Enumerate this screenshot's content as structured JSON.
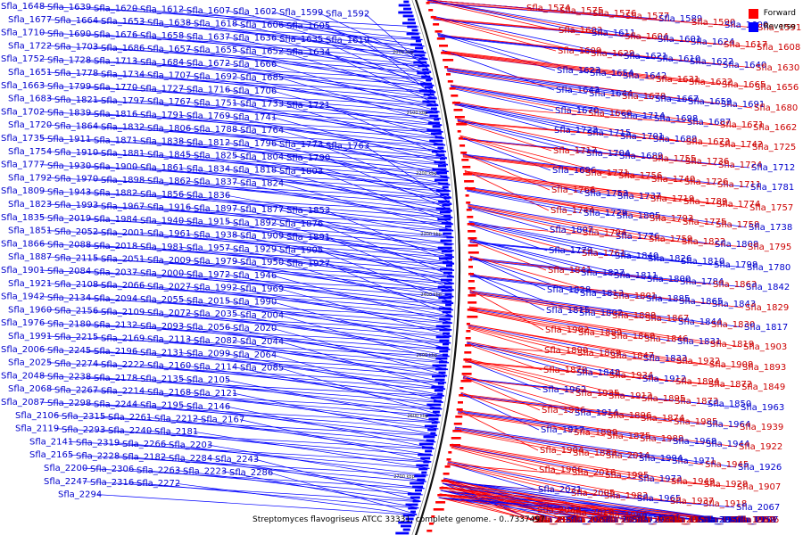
{
  "caption": "Streptomyces flavogriseus ATCC 33331, complete genome. - 0..7337497",
  "legend": {
    "forward": "Forward",
    "reverse": "Reverse"
  },
  "colors": {
    "forward": "#ff0000",
    "reverse": "#0000ff",
    "forward_line": "#ff0000",
    "reverse_line": "#0000ff",
    "text_forward": "#cc0000",
    "text_reverse": "#0000cc"
  },
  "axis_ticks": [
    "2000 kbp",
    "2100 kbp",
    "2200 kbp",
    "2300 kbp",
    "2400 kbp",
    "2500 kbp",
    "2600 kbp",
    "2700 kbp"
  ],
  "reverse_genes": [
    "Sfla_1648",
    "Sfla_1639",
    "Sfla_1620",
    "Sfla_1612",
    "Sfla_1607",
    "Sfla_1602",
    "Sfla_1599",
    "Sfla_1592",
    "Sfla_1677",
    "Sfla_1664",
    "Sfla_1653",
    "Sfla_1638",
    "Sfla_1618",
    "Sfla_1606",
    "Sfla_1605",
    "Sfla_1710",
    "Sfla_1690",
    "Sfla_1676",
    "Sfla_1658",
    "Sfla_1637",
    "Sfla_1636",
    "Sfla_1635",
    "Sfla_1619",
    "Sfla_1722",
    "Sfla_1703",
    "Sfla_1686",
    "Sfla_1657",
    "Sfla_1655",
    "Sfla_1652",
    "Sfla_1634",
    "Sfla_1752",
    "Sfla_1728",
    "Sfla_1713",
    "Sfla_1684",
    "Sfla_1672",
    "Sfla_1666",
    "Sfla_1651",
    "Sfla_1778",
    "Sfla_1734",
    "Sfla_1707",
    "Sfla_1692",
    "Sfla_1685",
    "Sfla_1663",
    "Sfla_1799",
    "Sfla_1770",
    "Sfla_1727",
    "Sfla_1716",
    "Sfla_1706",
    "Sfla_1683",
    "Sfla_1821",
    "Sfla_1797",
    "Sfla_1767",
    "Sfla_1751",
    "Sfla_1733",
    "Sfla_1721",
    "Sfla_1702",
    "Sfla_1839",
    "Sfla_1816",
    "Sfla_1791",
    "Sfla_1769",
    "Sfla_1741",
    "Sfla_1720",
    "Sfla_1864",
    "Sfla_1832",
    "Sfla_1806",
    "Sfla_1788",
    "Sfla_1764",
    "Sfla_1735",
    "Sfla_1911",
    "Sfla_1871",
    "Sfla_1838",
    "Sfla_1812",
    "Sfla_1796",
    "Sfla_1773",
    "Sfla_1763",
    "Sfla_1754",
    "Sfla_1910",
    "Sfla_1881",
    "Sfla_1845",
    "Sfla_1825",
    "Sfla_1804",
    "Sfla_1790",
    "Sfla_1777",
    "Sfla_1930",
    "Sfla_1900",
    "Sfla_1861",
    "Sfla_1834",
    "Sfla_1818",
    "Sfla_1803",
    "Sfla_1792",
    "Sfla_1970",
    "Sfla_1898",
    "Sfla_1862",
    "Sfla_1837",
    "Sfla_1824",
    "Sfla_1809",
    "Sfla_1943",
    "Sfla_1882",
    "Sfla_1856",
    "Sfla_1836",
    "Sfla_1823",
    "Sfla_1993",
    "Sfla_1967",
    "Sfla_1916",
    "Sfla_1897",
    "Sfla_1877",
    "Sfla_1853",
    "Sfla_1835",
    "Sfla_2019",
    "Sfla_1984",
    "Sfla_1940",
    "Sfla_1915",
    "Sfla_1892",
    "Sfla_1876",
    "Sfla_1851",
    "Sfla_2052",
    "Sfla_2001",
    "Sfla_1961",
    "Sfla_1938",
    "Sfla_1909",
    "Sfla_1891",
    "Sfla_1866",
    "Sfla_2088",
    "Sfla_2018",
    "Sfla_1981",
    "Sfla_1957",
    "Sfla_1929",
    "Sfla_1905",
    "Sfla_1887",
    "Sfla_2115",
    "Sfla_2051",
    "Sfla_2009",
    "Sfla_1979",
    "Sfla_1950",
    "Sfla_1927",
    "Sfla_1901",
    "Sfla_2084",
    "Sfla_2037",
    "Sfla_2000",
    "Sfla_1972",
    "Sfla_1946",
    "Sfla_1921",
    "Sfla_2108",
    "Sfla_2066",
    "Sfla_2027",
    "Sfla_1992",
    "Sfla_1969",
    "Sfla_1942",
    "Sfla_2134",
    "Sfla_2094",
    "Sfla_2055",
    "Sfla_2015",
    "Sfla_1990",
    "Sfla_1960",
    "Sfla_2156",
    "Sfla_2109",
    "Sfla_2072",
    "Sfla_2035",
    "Sfla_2004",
    "Sfla_1976",
    "Sfla_2180",
    "Sfla_2132",
    "Sfla_2093",
    "Sfla_2056",
    "Sfla_2020",
    "Sfla_1991",
    "Sfla_2215",
    "Sfla_2169",
    "Sfla_2113",
    "Sfla_2082",
    "Sfla_2044",
    "Sfla_2006",
    "Sfla_2245",
    "Sfla_2196",
    "Sfla_2131",
    "Sfla_2099",
    "Sfla_2064",
    "Sfla_2025",
    "Sfla_2274",
    "Sfla_2222",
    "Sfla_2160",
    "Sfla_2114",
    "Sfla_2085",
    "Sfla_2048",
    "Sfla_2238",
    "Sfla_2178",
    "Sfla_2135",
    "Sfla_2105",
    "Sfla_2068",
    "Sfla_2267",
    "Sfla_2214",
    "Sfla_2168",
    "Sfla_2121",
    "Sfla_2087",
    "Sfla_2298",
    "Sfla_2244",
    "Sfla_2195",
    "Sfla_2146",
    "Sfla_2106",
    "Sfla_2315",
    "Sfla_2261",
    "Sfla_2212",
    "Sfla_2167",
    "Sfla_2119",
    "Sfla_2293",
    "Sfla_2240",
    "Sfla_2181",
    "Sfla_2141",
    "Sfla_2319",
    "Sfla_2266",
    "Sfla_2203",
    "Sfla_2165",
    "Sfla_2228",
    "Sfla_2182",
    "Sfla_2284",
    "Sfla_2243",
    "Sfla_2200",
    "Sfla_2306",
    "Sfla_2263",
    "Sfla_2223",
    "Sfla_2286",
    "Sfla_2247",
    "Sfla_2316",
    "Sfla_2272",
    "Sfla_2294"
  ],
  "forward_genes": [
    {
      "name": "Sfla_1574",
      "s": "f"
    },
    {
      "name": "Sfla_1575",
      "s": "f"
    },
    {
      "name": "Sfla_1576",
      "s": "f"
    },
    {
      "name": "Sfla_1577",
      "s": "f"
    },
    {
      "name": "Sfla_1589",
      "s": "r"
    },
    {
      "name": "Sfla_1590",
      "s": "f"
    },
    {
      "name": "Sfla_1600",
      "s": "r"
    },
    {
      "name": "Sfla_1591",
      "s": "f"
    },
    {
      "name": "Sfla_1603",
      "s": "f"
    },
    {
      "name": "Sfla_1611",
      "s": "r"
    },
    {
      "name": "Sfla_1604",
      "s": "f"
    },
    {
      "name": "Sfla_1601",
      "s": "r"
    },
    {
      "name": "Sfla_1624",
      "s": "r"
    },
    {
      "name": "Sfla_1617",
      "s": "f"
    },
    {
      "name": "Sfla_1608",
      "s": "f"
    },
    {
      "name": "Sfla_1609",
      "s": "f"
    },
    {
      "name": "Sfla_1629",
      "s": "f"
    },
    {
      "name": "Sfla_1621",
      "s": "r"
    },
    {
      "name": "Sfla_1610",
      "s": "r"
    },
    {
      "name": "Sfla_1622",
      "s": "r"
    },
    {
      "name": "Sfla_1640",
      "s": "r"
    },
    {
      "name": "Sfla_1630",
      "s": "f"
    },
    {
      "name": "Sfla_1623",
      "s": "r"
    },
    {
      "name": "Sfla_1654",
      "s": "r"
    },
    {
      "name": "Sfla_1642",
      "s": "r"
    },
    {
      "name": "Sfla_1631",
      "s": "f"
    },
    {
      "name": "Sfla_1632",
      "s": "f"
    },
    {
      "name": "Sfla_1665",
      "s": "f"
    },
    {
      "name": "Sfla_1656",
      "s": "f"
    },
    {
      "name": "Sfla_1643",
      "s": "r"
    },
    {
      "name": "Sfla_1644",
      "s": "r"
    },
    {
      "name": "Sfla_1678",
      "s": "f"
    },
    {
      "name": "Sfla_1667",
      "s": "r"
    },
    {
      "name": "Sfla_1659",
      "s": "r"
    },
    {
      "name": "Sfla_1691",
      "s": "r"
    },
    {
      "name": "Sfla_1680",
      "s": "f"
    },
    {
      "name": "Sfla_1670",
      "s": "r"
    },
    {
      "name": "Sfla_1660",
      "s": "f"
    },
    {
      "name": "Sfla_1714",
      "s": "r"
    },
    {
      "name": "Sfla_1698",
      "s": "r"
    },
    {
      "name": "Sfla_1687",
      "s": "r"
    },
    {
      "name": "Sfla_1671",
      "s": "f"
    },
    {
      "name": "Sfla_1662",
      "s": "f"
    },
    {
      "name": "Sfla_1723",
      "s": "r"
    },
    {
      "name": "Sfla_1715",
      "s": "r"
    },
    {
      "name": "Sfla_1701",
      "s": "r"
    },
    {
      "name": "Sfla_1688",
      "s": "r"
    },
    {
      "name": "Sfla_1673",
      "s": "f"
    },
    {
      "name": "Sfla_1742",
      "s": "f"
    },
    {
      "name": "Sfla_1725",
      "s": "f"
    },
    {
      "name": "Sfla_1717",
      "s": "f"
    },
    {
      "name": "Sfla_1704",
      "s": "r"
    },
    {
      "name": "Sfla_1689",
      "s": "r"
    },
    {
      "name": "Sfla_1755",
      "s": "f"
    },
    {
      "name": "Sfla_1736",
      "s": "f"
    },
    {
      "name": "Sfla_1724",
      "s": "f"
    },
    {
      "name": "Sfla_1712",
      "s": "r"
    },
    {
      "name": "Sfla_1696",
      "s": "r"
    },
    {
      "name": "Sfla_1771",
      "s": "f"
    },
    {
      "name": "Sfla_1756",
      "s": "f"
    },
    {
      "name": "Sfla_1740",
      "s": "f"
    },
    {
      "name": "Sfla_1726",
      "s": "f"
    },
    {
      "name": "Sfla_1711",
      "s": "f"
    },
    {
      "name": "Sfla_1781",
      "s": "r"
    },
    {
      "name": "Sfla_1766",
      "s": "f"
    },
    {
      "name": "Sfla_1753",
      "s": "r"
    },
    {
      "name": "Sfla_1737",
      "s": "r"
    },
    {
      "name": "Sfla_1719",
      "s": "f"
    },
    {
      "name": "Sfla_1789",
      "s": "f"
    },
    {
      "name": "Sfla_1774",
      "s": "f"
    },
    {
      "name": "Sfla_1757",
      "s": "f"
    },
    {
      "name": "Sfla_1744",
      "s": "f"
    },
    {
      "name": "Sfla_1729",
      "s": "r"
    },
    {
      "name": "Sfla_1805",
      "s": "r"
    },
    {
      "name": "Sfla_1793",
      "s": "f"
    },
    {
      "name": "Sfla_1775",
      "s": "f"
    },
    {
      "name": "Sfla_1758",
      "s": "f"
    },
    {
      "name": "Sfla_1738",
      "s": "r"
    },
    {
      "name": "Sfla_1807",
      "s": "r"
    },
    {
      "name": "Sfla_1794",
      "s": "f"
    },
    {
      "name": "Sfla_1776",
      "s": "r"
    },
    {
      "name": "Sfla_1759",
      "s": "f"
    },
    {
      "name": "Sfla_1822",
      "s": "f"
    },
    {
      "name": "Sfla_1808",
      "s": "r"
    },
    {
      "name": "Sfla_1795",
      "s": "f"
    },
    {
      "name": "Sfla_1779",
      "s": "r"
    },
    {
      "name": "Sfla_1761",
      "s": "f"
    },
    {
      "name": "Sfla_1840",
      "s": "r"
    },
    {
      "name": "Sfla_1826",
      "s": "r"
    },
    {
      "name": "Sfla_1810",
      "s": "r"
    },
    {
      "name": "Sfla_1798",
      "s": "r"
    },
    {
      "name": "Sfla_1780",
      "s": "r"
    },
    {
      "name": "Sfla_1841",
      "s": "f"
    },
    {
      "name": "Sfla_1827",
      "s": "r"
    },
    {
      "name": "Sfla_1811",
      "s": "r"
    },
    {
      "name": "Sfla_1800",
      "s": "r"
    },
    {
      "name": "Sfla_1784",
      "s": "r"
    },
    {
      "name": "Sfla_1863",
      "s": "f"
    },
    {
      "name": "Sfla_1842",
      "s": "r"
    },
    {
      "name": "Sfla_1828",
      "s": "r"
    },
    {
      "name": "Sfla_1813",
      "s": "r"
    },
    {
      "name": "Sfla_1801",
      "s": "f"
    },
    {
      "name": "Sfla_1885",
      "s": "r"
    },
    {
      "name": "Sfla_1865",
      "s": "r"
    },
    {
      "name": "Sfla_1843",
      "s": "r"
    },
    {
      "name": "Sfla_1829",
      "s": "f"
    },
    {
      "name": "Sfla_1815",
      "s": "r"
    },
    {
      "name": "Sfla_1802",
      "s": "r"
    },
    {
      "name": "Sfla_1888",
      "s": "f"
    },
    {
      "name": "Sfla_1867",
      "s": "f"
    },
    {
      "name": "Sfla_1844",
      "s": "r"
    },
    {
      "name": "Sfla_1830",
      "s": "f"
    },
    {
      "name": "Sfla_1817",
      "s": "r"
    },
    {
      "name": "Sfla_1902",
      "s": "f"
    },
    {
      "name": "Sfla_1889",
      "s": "f"
    },
    {
      "name": "Sfla_1868",
      "s": "f"
    },
    {
      "name": "Sfla_1846",
      "s": "f"
    },
    {
      "name": "Sfla_1831",
      "s": "r"
    },
    {
      "name": "Sfla_1819",
      "s": "f"
    },
    {
      "name": "Sfla_1903",
      "s": "f"
    },
    {
      "name": "Sfla_1890",
      "s": "f"
    },
    {
      "name": "Sfla_1869",
      "s": "f"
    },
    {
      "name": "Sfla_1847",
      "s": "f"
    },
    {
      "name": "Sfla_1833",
      "s": "r"
    },
    {
      "name": "Sfla_1932",
      "s": "f"
    },
    {
      "name": "Sfla_1908",
      "s": "f"
    },
    {
      "name": "Sfla_1893",
      "s": "f"
    },
    {
      "name": "Sfla_1870",
      "s": "f"
    },
    {
      "name": "Sfla_1848",
      "s": "r"
    },
    {
      "name": "Sfla_1934",
      "s": "f"
    },
    {
      "name": "Sfla_1912",
      "s": "r"
    },
    {
      "name": "Sfla_1894",
      "s": "f"
    },
    {
      "name": "Sfla_1872",
      "s": "f"
    },
    {
      "name": "Sfla_1849",
      "s": "f"
    },
    {
      "name": "Sfla_1962",
      "s": "r"
    },
    {
      "name": "Sfla_1935",
      "s": "f"
    },
    {
      "name": "Sfla_1913",
      "s": "f"
    },
    {
      "name": "Sfla_1895",
      "s": "f"
    },
    {
      "name": "Sfla_1873",
      "s": "f"
    },
    {
      "name": "Sfla_1850",
      "s": "r"
    },
    {
      "name": "Sfla_1963",
      "s": "r"
    },
    {
      "name": "Sfla_1936",
      "s": "f"
    },
    {
      "name": "Sfla_1914",
      "s": "r"
    },
    {
      "name": "Sfla_1896",
      "s": "f"
    },
    {
      "name": "Sfla_1874",
      "s": "f"
    },
    {
      "name": "Sfla_1985",
      "s": "f"
    },
    {
      "name": "Sfla_1964",
      "s": "r"
    },
    {
      "name": "Sfla_1939",
      "s": "f"
    },
    {
      "name": "Sfla_1917",
      "s": "r"
    },
    {
      "name": "Sfla_1899",
      "s": "f"
    },
    {
      "name": "Sfla_1875",
      "s": "f"
    },
    {
      "name": "Sfla_1988",
      "s": "f"
    },
    {
      "name": "Sfla_1968",
      "s": "r"
    },
    {
      "name": "Sfla_1944",
      "s": "r"
    },
    {
      "name": "Sfla_1922",
      "s": "f"
    },
    {
      "name": "Sfla_1904",
      "s": "f"
    },
    {
      "name": "Sfla_1883",
      "s": "f"
    },
    {
      "name": "Sfla_2014",
      "s": "f"
    },
    {
      "name": "Sfla_1994",
      "s": "r"
    },
    {
      "name": "Sfla_1971",
      "s": "r"
    },
    {
      "name": "Sfla_1945",
      "s": "f"
    },
    {
      "name": "Sfla_1926",
      "s": "r"
    },
    {
      "name": "Sfla_1906",
      "s": "f"
    },
    {
      "name": "Sfla_2016",
      "s": "f"
    },
    {
      "name": "Sfla_1995",
      "s": "f"
    },
    {
      "name": "Sfla_1973",
      "s": "r"
    },
    {
      "name": "Sfla_1949",
      "s": "f"
    },
    {
      "name": "Sfla_1928",
      "s": "f"
    },
    {
      "name": "Sfla_1907",
      "s": "f"
    },
    {
      "name": "Sfla_2031",
      "s": "r"
    },
    {
      "name": "Sfla_2005",
      "s": "f"
    },
    {
      "name": "Sfla_1983",
      "s": "f"
    },
    {
      "name": "Sfla_1965",
      "s": "r"
    },
    {
      "name": "Sfla_1937",
      "s": "f"
    },
    {
      "name": "Sfla_1918",
      "s": "f"
    },
    {
      "name": "Sfla_2067",
      "s": "r"
    },
    {
      "name": "Sfla_2038",
      "s": "f"
    },
    {
      "name": "Sfla_2010",
      "s": "f"
    },
    {
      "name": "Sfla_1986",
      "s": "f"
    },
    {
      "name": "Sfla_1966",
      "s": "r"
    },
    {
      "name": "Sfla_1941",
      "s": "f"
    },
    {
      "name": "Sfla_1919",
      "s": "r"
    },
    {
      "name": "Sfla_2076",
      "s": "f"
    },
    {
      "name": "Sfla_2047",
      "s": "f"
    },
    {
      "name": "Sfla_2017",
      "s": "f"
    },
    {
      "name": "Sfla_1996",
      "s": "f"
    },
    {
      "name": "Sfla_1974",
      "s": "r"
    },
    {
      "name": "Sfla_1947",
      "s": "f"
    },
    {
      "name": "Sfla_1920",
      "s": "r"
    },
    {
      "name": "Sfla_2107",
      "s": "r"
    },
    {
      "name": "Sfla_2079",
      "s": "r"
    },
    {
      "name": "Sfla_2050",
      "s": "f"
    },
    {
      "name": "Sfla_2021",
      "s": "r"
    },
    {
      "name": "Sfla_1997",
      "s": "f"
    },
    {
      "name": "Sfla_1975",
      "s": "r"
    },
    {
      "name": "Sfla_1948",
      "s": "f"
    },
    {
      "name": "Sfla_1931",
      "s": "f"
    },
    {
      "name": "Sfla_2110",
      "s": "f"
    },
    {
      "name": "Sfla_2083",
      "s": "f"
    },
    {
      "name": "Sfla_2053",
      "s": "f"
    },
    {
      "name": "Sfla_2022",
      "s": "f"
    },
    {
      "name": "Sfla_1998",
      "s": "f"
    },
    {
      "name": "Sfla_1977",
      "s": "r"
    },
    {
      "name": "Sfla_1951",
      "s": "r"
    },
    {
      "name": "Sfla_2111",
      "s": "f"
    },
    {
      "name": "Sfla_2086",
      "s": "f"
    },
    {
      "name": "Sfla_2054",
      "s": "r"
    },
    {
      "name": "Sfla_2023",
      "s": "f"
    },
    {
      "name": "Sfla_1999",
      "s": "f"
    },
    {
      "name": "Sfla_1978",
      "s": "r"
    },
    {
      "name": "Sfla_1952",
      "s": "r"
    },
    {
      "name": "Sfla_2024",
      "s": "f"
    },
    {
      "name": "Sfla_2002",
      "s": "r"
    },
    {
      "name": "Sfla_1980",
      "s": "f"
    },
    {
      "name": "Sfla_1954",
      "s": "r"
    },
    {
      "name": "Sfla_2026",
      "s": "f"
    },
    {
      "name": "Sfla_2003",
      "s": "r"
    },
    {
      "name": "Sfla_1982",
      "s": "f"
    }
  ]
}
